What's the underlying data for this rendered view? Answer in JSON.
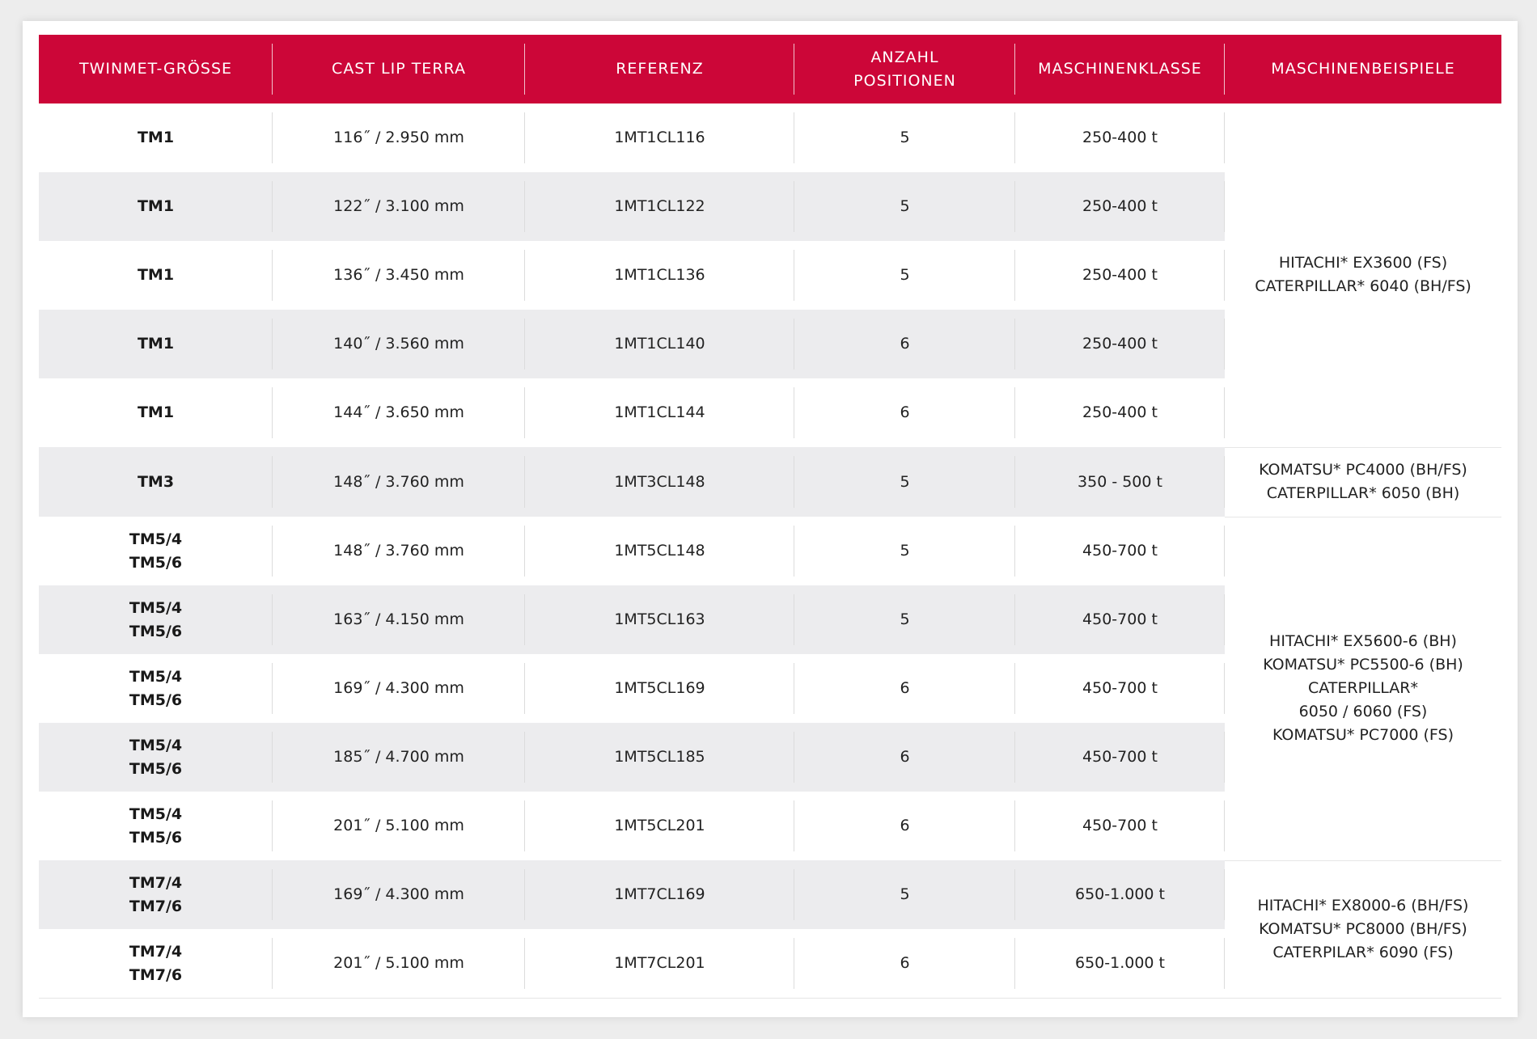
{
  "headers": {
    "size": "TWINMET-GRÖSSE",
    "lip": "CAST LIP TERRA",
    "ref": "REFERENZ",
    "positions_line1": "ANZAHL",
    "positions_line2": "POSITIONEN",
    "class": "MASCHINENKLASSE",
    "examples": "MASCHINENBEISPIELE"
  },
  "rows": [
    {
      "size": [
        "TM1"
      ],
      "lip": "116˝ / 2.950 mm",
      "ref": "1MT1CL116",
      "positions": "5",
      "class": "250-400 t"
    },
    {
      "size": [
        "TM1"
      ],
      "lip": "122˝ / 3.100 mm",
      "ref": "1MT1CL122",
      "positions": "5",
      "class": "250-400 t"
    },
    {
      "size": [
        "TM1"
      ],
      "lip": "136˝ / 3.450 mm",
      "ref": "1MT1CL136",
      "positions": "5",
      "class": "250-400 t"
    },
    {
      "size": [
        "TM1"
      ],
      "lip": "140˝ / 3.560 mm",
      "ref": "1MT1CL140",
      "positions": "6",
      "class": "250-400 t"
    },
    {
      "size": [
        "TM1"
      ],
      "lip": "144˝ / 3.650 mm",
      "ref": "1MT1CL144",
      "positions": "6",
      "class": "250-400 t"
    },
    {
      "size": [
        "TM3"
      ],
      "lip": "148˝ / 3.760 mm",
      "ref": "1MT3CL148",
      "positions": "5",
      "class": "350 - 500 t"
    },
    {
      "size": [
        "TM5/4",
        "TM5/6"
      ],
      "lip": "148˝ / 3.760 mm",
      "ref": "1MT5CL148",
      "positions": "5",
      "class": "450-700 t"
    },
    {
      "size": [
        "TM5/4",
        "TM5/6"
      ],
      "lip": "163˝ / 4.150 mm",
      "ref": "1MT5CL163",
      "positions": "5",
      "class": "450-700 t"
    },
    {
      "size": [
        "TM5/4",
        "TM5/6"
      ],
      "lip": "169˝ / 4.300 mm",
      "ref": "1MT5CL169",
      "positions": "6",
      "class": "450-700 t"
    },
    {
      "size": [
        "TM5/4",
        "TM5/6"
      ],
      "lip": "185˝ / 4.700 mm",
      "ref": "1MT5CL185",
      "positions": "6",
      "class": "450-700 t"
    },
    {
      "size": [
        "TM5/4",
        "TM5/6"
      ],
      "lip": "201˝ / 5.100 mm",
      "ref": "1MT5CL201",
      "positions": "6",
      "class": "450-700 t"
    },
    {
      "size": [
        "TM7/4",
        "TM7/6"
      ],
      "lip": "169˝ / 4.300 mm",
      "ref": "1MT7CL169",
      "positions": "5",
      "class": "650-1.000 t"
    },
    {
      "size": [
        "TM7/4",
        "TM7/6"
      ],
      "lip": "201˝ / 5.100 mm",
      "ref": "1MT7CL201",
      "positions": "6",
      "class": "650-1.000 t"
    }
  ],
  "example_groups": [
    {
      "lines": [
        "HITACHI* EX3600 (FS)",
        "CATERPILLAR* 6040 (BH/FS)"
      ]
    },
    {
      "lines": [
        "KOMATSU* PC4000 (BH/FS)",
        "CATERPILLAR* 6050 (BH)"
      ]
    },
    {
      "lines": [
        "HITACHI* EX5600-6 (BH)",
        "KOMATSU* PC5500-6 (BH)",
        "CATERPILLAR*",
        "6050 / 6060 (FS)",
        "KOMATSU* PC7000 (FS)"
      ]
    },
    {
      "lines": [
        "HITACHI* EX8000-6 (BH/FS)",
        "KOMATSU* PC8000 (BH/FS)",
        "CATERPILAR* 6090 (FS)"
      ]
    }
  ],
  "colors": {
    "header_bg": "#cc0638",
    "row_shade": "#ececee"
  }
}
